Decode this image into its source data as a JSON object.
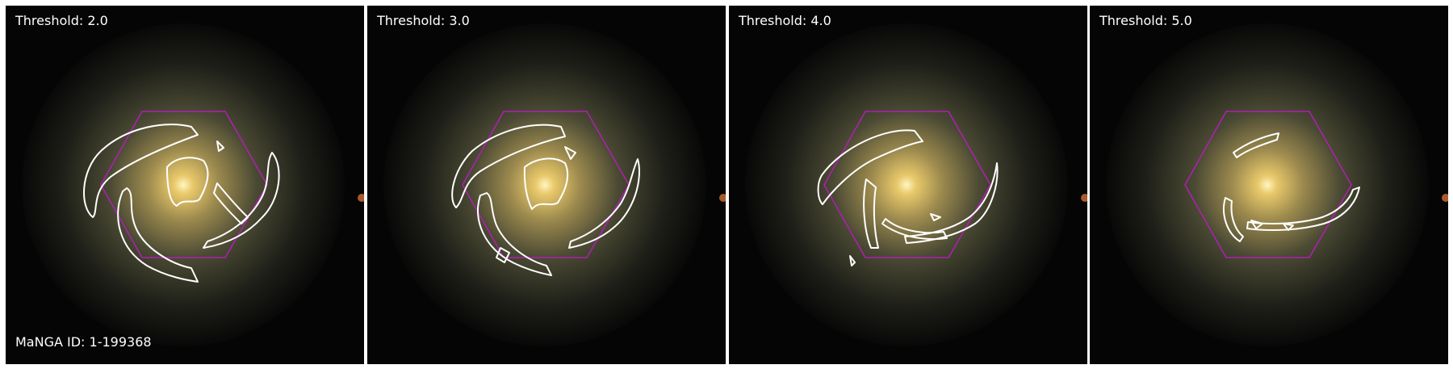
{
  "figure": {
    "panels": [
      {
        "threshold_label": "Threshold: 2.0"
      },
      {
        "threshold_label": "Threshold: 3.0"
      },
      {
        "threshold_label": "Threshold: 4.0"
      },
      {
        "threshold_label": "Threshold: 5.0"
      }
    ],
    "galaxy_id_label": "MaNGA ID: 1-199368"
  },
  "colors": {
    "background": "#000000",
    "hexagon": "#b01fb4",
    "contour": "#ffffff",
    "galaxy_core": "#fff1a8",
    "galaxy_bulge": "#c9a35a",
    "galaxy_disk": "#5a5a3a"
  }
}
